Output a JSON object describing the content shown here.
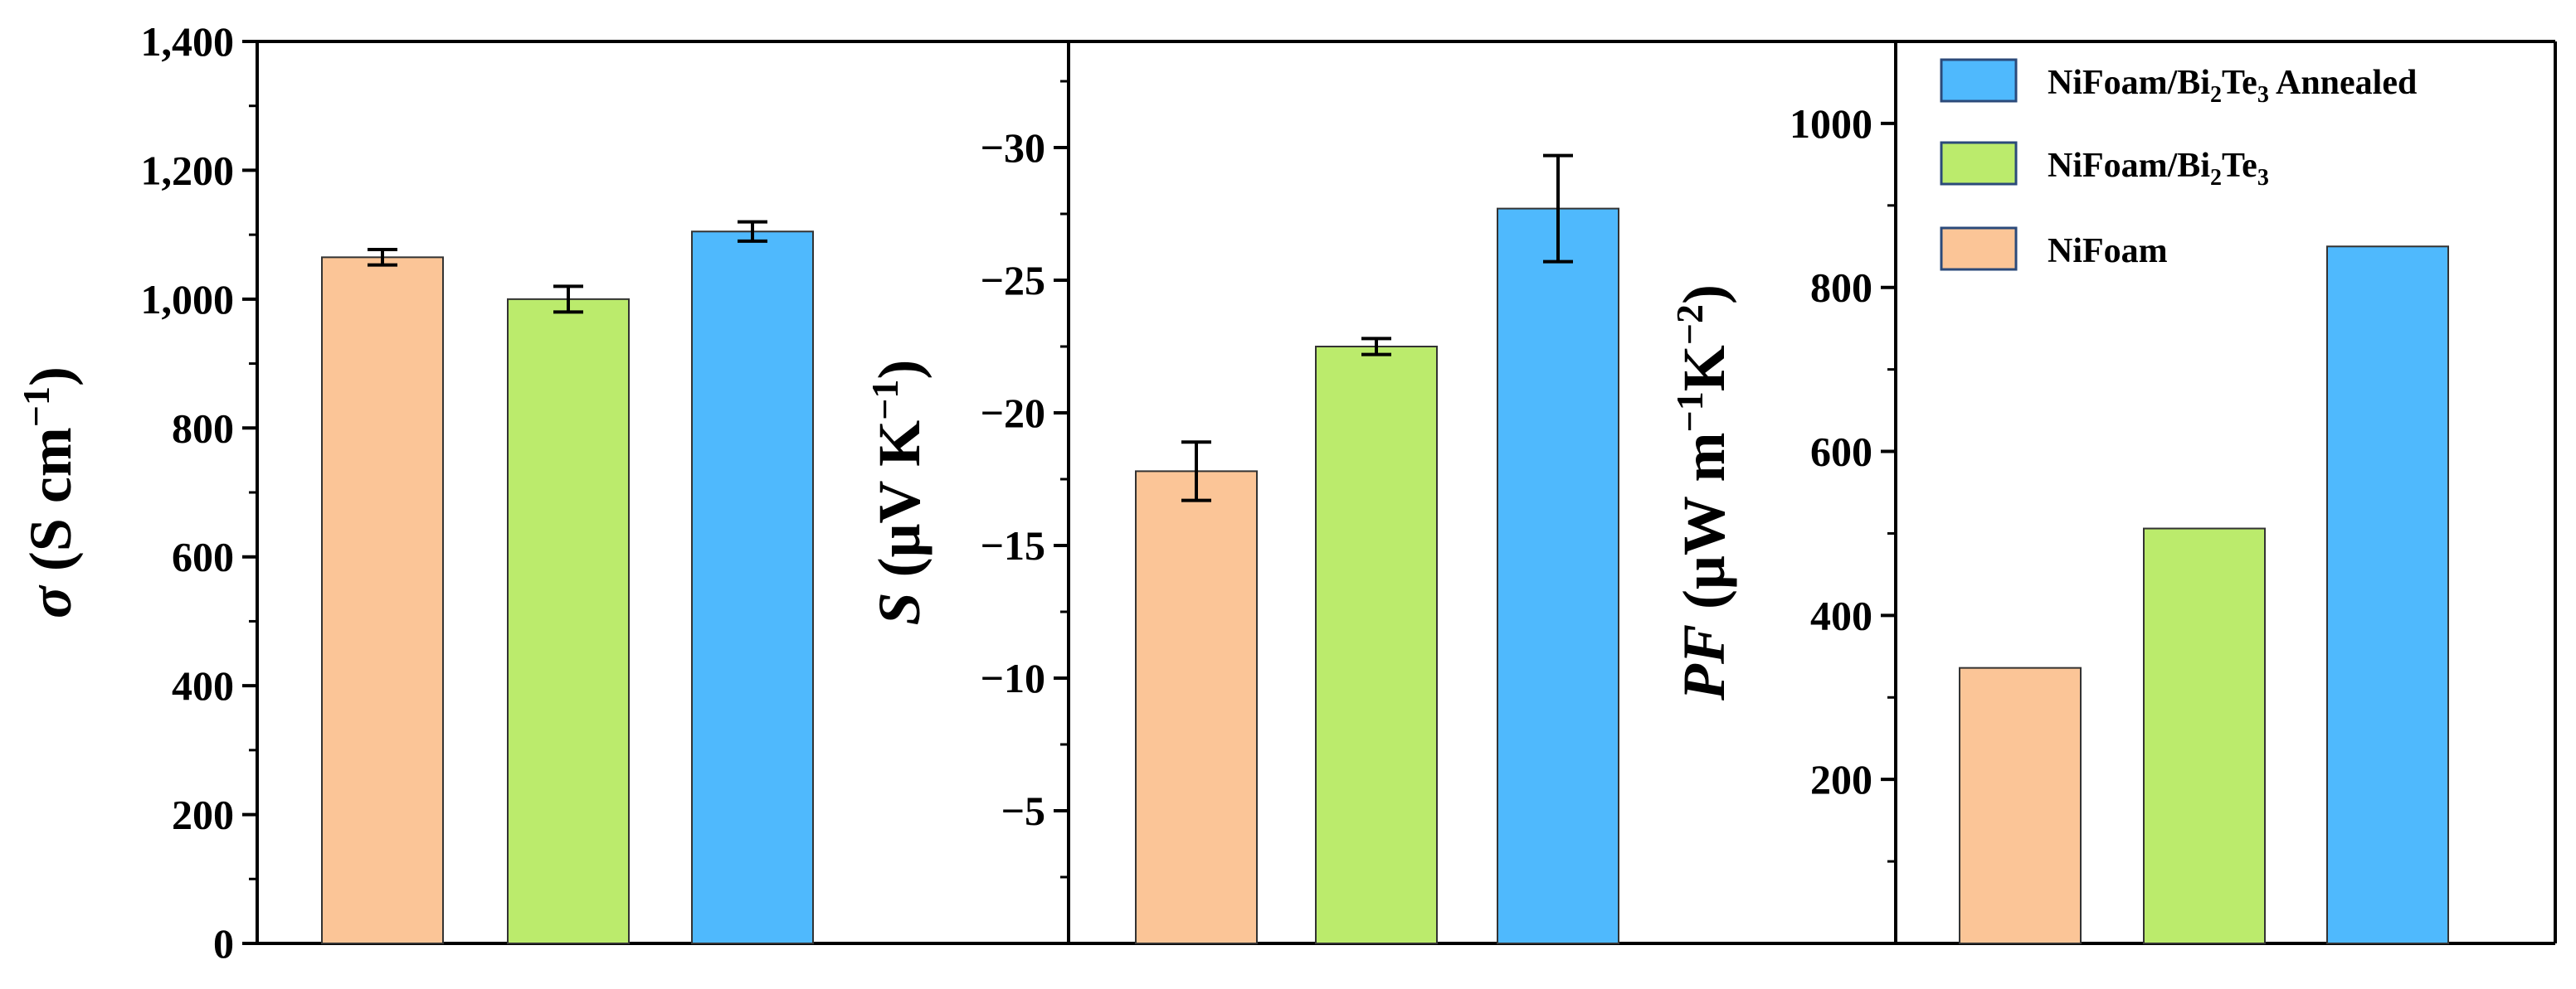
{
  "colors": {
    "NiFoam": "#FBC597",
    "NiFoam/Bi2Te3": "#BBEB6C",
    "NiFoam/Bi2Te3 Annealed": "#4FB9FD",
    "axis": "#000000",
    "bar_stroke": "#333333"
  },
  "chart_data": [
    {
      "type": "bar",
      "panel": "conductivity",
      "ylabel_symbol": "σ",
      "ylabel_text": " (S cm",
      "ylabel_sup": "−1",
      "ylabel_close": ")",
      "ylim": [
        0,
        1400
      ],
      "reversed_axis": false,
      "yticks": [
        0,
        200,
        400,
        600,
        800,
        1000,
        1200,
        1400
      ],
      "ytick_labels": [
        "0",
        "200",
        "400",
        "600",
        "800",
        "1,000",
        "1,200",
        "1,400"
      ],
      "minor_step": 100,
      "series": [
        "NiFoam",
        "NiFoam/Bi2Te3",
        "NiFoam/Bi2Te3 Annealed"
      ],
      "values": [
        1065,
        1000,
        1105
      ],
      "errors": [
        12,
        20,
        15
      ]
    },
    {
      "type": "bar",
      "panel": "seebeck",
      "ylabel_symbol": "S",
      "ylabel_text": " (μV K",
      "ylabel_sup": "−1",
      "ylabel_close": ")",
      "ylim": [
        0,
        -34
      ],
      "reversed_axis": true,
      "yticks": [
        -5,
        -10,
        -15,
        -20,
        -25,
        -30
      ],
      "ytick_labels": [
        "−5",
        "−10",
        "−15",
        "−20",
        "−25",
        "−30"
      ],
      "minor_step": 2.5,
      "series": [
        "NiFoam",
        "NiFoam/Bi2Te3",
        "NiFoam/Bi2Te3 Annealed"
      ],
      "values": [
        -17.8,
        -22.5,
        -27.7
      ],
      "errors": [
        1.1,
        0.3,
        2.0
      ]
    },
    {
      "type": "bar",
      "panel": "power-factor",
      "ylabel_symbol": "PF",
      "ylabel_text": " (μW m",
      "ylabel_sup": "−1",
      "ylabel_mid": "K",
      "ylabel_sup2": "−2",
      "ylabel_close": ")",
      "ylim": [
        0,
        1100
      ],
      "reversed_axis": false,
      "yticks": [
        200,
        400,
        600,
        800,
        1000
      ],
      "ytick_labels": [
        "200",
        "400",
        "600",
        "800",
        "1000"
      ],
      "minor_step": 100,
      "series": [
        "NiFoam",
        "NiFoam/Bi2Te3",
        "NiFoam/Bi2Te3 Annealed"
      ],
      "values": [
        336,
        506,
        850
      ],
      "errors": [
        0,
        0,
        0
      ]
    }
  ],
  "legend": {
    "items": [
      {
        "series": "NiFoam/Bi2Te3 Annealed",
        "text_a": "NiFoam/Bi",
        "sub1": "2",
        "text_b": "Te",
        "sub2": "3",
        "text_c": " Annealed"
      },
      {
        "series": "NiFoam/Bi2Te3",
        "text_a": "NiFoam/Bi",
        "sub1": "2",
        "text_b": "Te",
        "sub2": "3",
        "text_c": ""
      },
      {
        "series": "NiFoam",
        "text_a": "NiFoam",
        "sub1": "",
        "text_b": "",
        "sub2": "",
        "text_c": ""
      }
    ]
  }
}
